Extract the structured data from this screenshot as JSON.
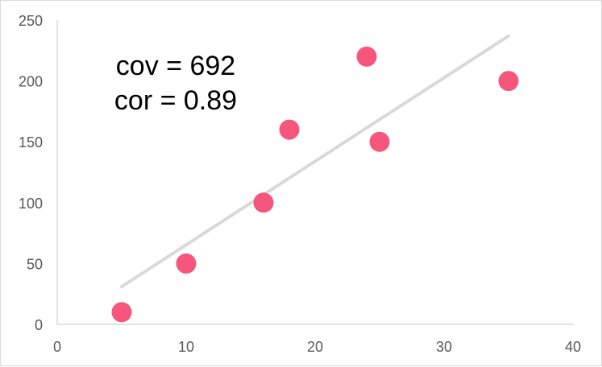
{
  "chart_data": {
    "type": "scatter",
    "title": "",
    "xlabel": "",
    "ylabel": "",
    "xlim": [
      0,
      40
    ],
    "ylim": [
      0,
      250
    ],
    "x_ticks": [
      0,
      10,
      20,
      30,
      40
    ],
    "y_ticks": [
      0,
      50,
      100,
      150,
      200,
      250
    ],
    "grid": false,
    "legend": "none",
    "points": [
      {
        "x": 5,
        "y": 10
      },
      {
        "x": 10,
        "y": 50
      },
      {
        "x": 16,
        "y": 100
      },
      {
        "x": 18,
        "y": 160
      },
      {
        "x": 24,
        "y": 220
      },
      {
        "x": 25,
        "y": 150
      },
      {
        "x": 35,
        "y": 200
      }
    ],
    "trendline": {
      "type": "linear",
      "from": {
        "x": 5,
        "y": 31
      },
      "to": {
        "x": 35,
        "y": 237
      }
    },
    "annotations": [
      "cov = 692",
      "cor = 0.89"
    ],
    "colors": {
      "marker": "#f7567c",
      "trendline": "#d9d9d9",
      "axis": "#d9d9d9",
      "tick_label": "#595959"
    }
  }
}
